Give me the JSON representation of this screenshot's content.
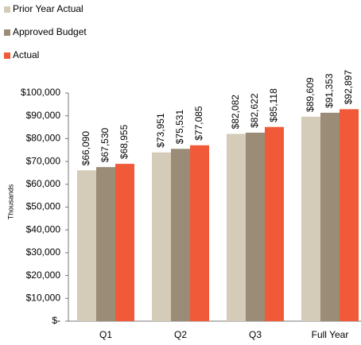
{
  "chart_data": {
    "type": "bar",
    "categories": [
      "Q1",
      "Q2",
      "Q3",
      "Full Year"
    ],
    "series": [
      {
        "name": "Prior Year Actual",
        "color": "#d4cbb8",
        "values": [
          66090,
          73951,
          82082,
          89609
        ],
        "value_labels": [
          "$66,090",
          "$73,951",
          "$82,082",
          "$89,609"
        ]
      },
      {
        "name": "Approved Budget",
        "color": "#9b8c78",
        "values": [
          67530,
          75531,
          82622,
          91353
        ],
        "value_labels": [
          "$67,530",
          "$75,531",
          "$82,622",
          "$91,353"
        ]
      },
      {
        "name": "Actual",
        "color": "#f05a38",
        "values": [
          68955,
          77085,
          85118,
          92897
        ],
        "value_labels": [
          "$68,955",
          "$77,085",
          "$85,118",
          "$92,897"
        ]
      }
    ],
    "ylabel": "Thousands",
    "ylim": [
      0,
      100000
    ],
    "yticks": [
      {
        "value": 0,
        "label": "$-"
      },
      {
        "value": 10000,
        "label": "$10,000"
      },
      {
        "value": 20000,
        "label": "$20,000"
      },
      {
        "value": 30000,
        "label": "$30,000"
      },
      {
        "value": 40000,
        "label": "$40,000"
      },
      {
        "value": 50000,
        "label": "$50,000"
      },
      {
        "value": 60000,
        "label": "$60,000"
      },
      {
        "value": 70000,
        "label": "$70,000"
      },
      {
        "value": 80000,
        "label": "$80,000"
      },
      {
        "value": 90000,
        "label": "$90,000"
      },
      {
        "value": 100000,
        "label": "$100,000"
      }
    ],
    "legend": "top-left",
    "grid": false
  }
}
